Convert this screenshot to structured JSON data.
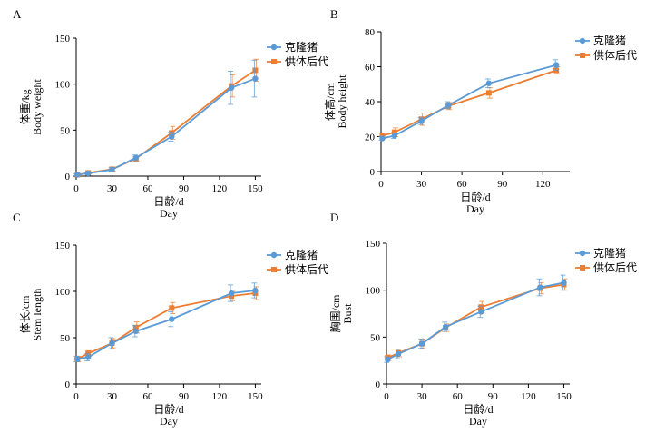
{
  "colors": {
    "clone": "#5b9bd5",
    "donor": "#ed7d31",
    "axis": "#000000"
  },
  "chart_data": [
    {
      "panel": "A",
      "type": "line",
      "ylabel_cn": "体重/kg",
      "ylabel_en": "Body weight",
      "xlabel_cn": "日龄/d",
      "xlabel_en": "Day",
      "xlim": [
        0,
        155
      ],
      "ylim": [
        0,
        150
      ],
      "xticks": [
        0,
        30,
        60,
        90,
        120,
        150
      ],
      "yticks": [
        0,
        50,
        100,
        150
      ],
      "legend": "top-right",
      "series": [
        {
          "name": "克隆猪",
          "color_key": "clone",
          "marker": "circle",
          "x": [
            1,
            10,
            30,
            50,
            80,
            130,
            150
          ],
          "y": [
            1.5,
            3,
            7,
            20,
            43,
            96,
            106
          ],
          "err": [
            1,
            1,
            2,
            3,
            5,
            18,
            20
          ]
        },
        {
          "name": "供体后代",
          "color_key": "donor",
          "marker": "square",
          "x": [
            1,
            10,
            30,
            50,
            80,
            130,
            150
          ],
          "y": [
            1.5,
            3.5,
            7.5,
            19,
            47,
            98,
            115
          ],
          "err": [
            1,
            1,
            2,
            3,
            7,
            12,
            12
          ]
        }
      ]
    },
    {
      "panel": "B",
      "type": "line",
      "ylabel_cn": "体高/cm",
      "ylabel_en": "Body height",
      "xlabel_cn": "日龄/d",
      "xlabel_en": "Day",
      "xlim": [
        0,
        140
      ],
      "ylim": [
        0,
        80
      ],
      "xticks": [
        0,
        30,
        60,
        90,
        120
      ],
      "yticks": [
        0,
        20,
        40,
        60,
        80
      ],
      "legend": "top-right",
      "series": [
        {
          "name": "克隆猪",
          "color_key": "clone",
          "marker": "circle",
          "x": [
            1,
            10,
            30,
            50,
            80,
            130
          ],
          "y": [
            19,
            20.5,
            29,
            38,
            50.5,
            61
          ],
          "err": [
            1,
            1.5,
            2,
            2,
            2.5,
            3
          ]
        },
        {
          "name": "供体后代",
          "color_key": "donor",
          "marker": "square",
          "x": [
            1,
            10,
            30,
            50,
            80,
            130
          ],
          "y": [
            20.5,
            22.5,
            30,
            37.5,
            45,
            58
          ],
          "err": [
            1.5,
            2.5,
            3.5,
            2,
            3,
            2
          ]
        }
      ]
    },
    {
      "panel": "C",
      "type": "line",
      "ylabel_cn": "体长/cm",
      "ylabel_en": "Stem length",
      "xlabel_cn": "日龄/d",
      "xlabel_en": "Day",
      "xlim": [
        0,
        155
      ],
      "ylim": [
        0,
        150
      ],
      "xticks": [
        0,
        30,
        60,
        90,
        120,
        150
      ],
      "yticks": [
        0,
        50,
        100,
        150
      ],
      "legend": "top-right",
      "series": [
        {
          "name": "克隆猪",
          "color_key": "clone",
          "marker": "circle",
          "x": [
            1,
            10,
            30,
            50,
            80,
            130,
            150
          ],
          "y": [
            27,
            29,
            44,
            57,
            70,
            98,
            101
          ],
          "err": [
            3,
            4,
            6,
            6,
            8,
            9,
            8
          ]
        },
        {
          "name": "供体后代",
          "color_key": "donor",
          "marker": "square",
          "x": [
            1,
            10,
            30,
            50,
            80,
            130,
            150
          ],
          "y": [
            27,
            33,
            44,
            61,
            82,
            95,
            98
          ],
          "err": [
            3,
            3,
            5,
            6,
            6,
            5,
            7
          ]
        }
      ]
    },
    {
      "panel": "D",
      "type": "line",
      "ylabel_cn": "胸围/cm",
      "ylabel_en": "Bust",
      "xlabel_cn": "日龄/d",
      "xlabel_en": "Day",
      "xlim": [
        0,
        155
      ],
      "ylim": [
        0,
        150
      ],
      "xticks": [
        0,
        30,
        60,
        90,
        120,
        150
      ],
      "yticks": [
        0,
        50,
        100,
        150
      ],
      "legend": "top-right",
      "series": [
        {
          "name": "克隆猪",
          "color_key": "clone",
          "marker": "circle",
          "x": [
            1,
            10,
            30,
            50,
            80,
            130,
            150
          ],
          "y": [
            26,
            32,
            43,
            61,
            77,
            103,
            108
          ],
          "err": [
            3,
            5,
            5,
            5,
            6,
            9,
            8
          ]
        },
        {
          "name": "供体后代",
          "color_key": "donor",
          "marker": "square",
          "x": [
            1,
            10,
            30,
            50,
            80,
            130,
            150
          ],
          "y": [
            28,
            33,
            43,
            60,
            82,
            102,
            106
          ],
          "err": [
            3,
            4,
            5,
            4,
            6,
            6,
            6
          ]
        }
      ]
    }
  ]
}
